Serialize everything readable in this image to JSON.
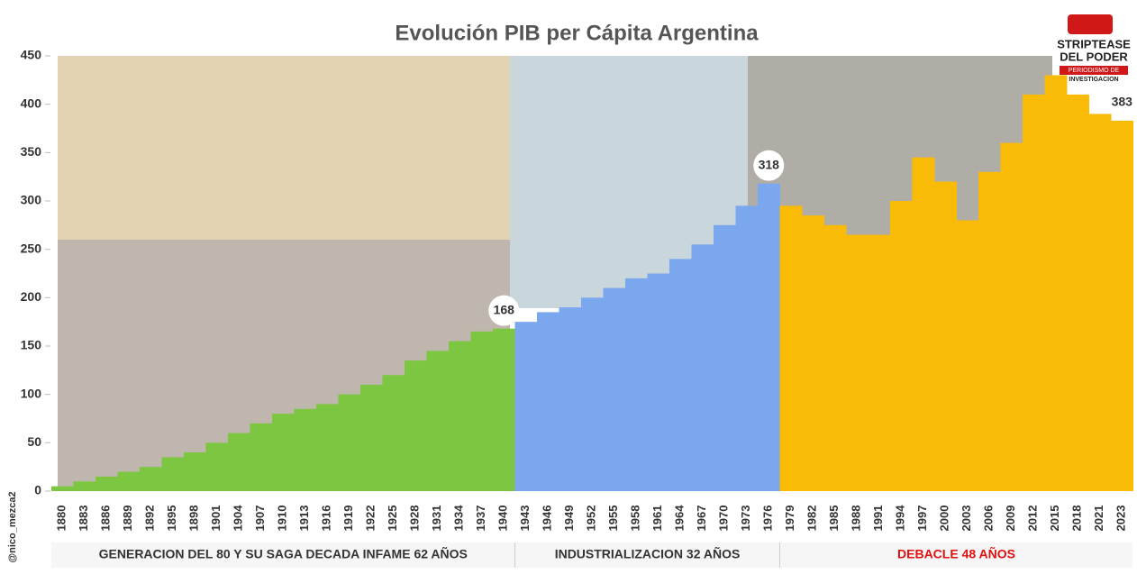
{
  "chart_data": {
    "type": "area",
    "title": "Evolución PIB per Cápita Argentina",
    "categories": [
      "1880",
      "1883",
      "1886",
      "1889",
      "1892",
      "1895",
      "1898",
      "1901",
      "1904",
      "1907",
      "1910",
      "1913",
      "1916",
      "1919",
      "1922",
      "1925",
      "1928",
      "1931",
      "1934",
      "1937",
      "1940",
      "1943",
      "1946",
      "1949",
      "1952",
      "1955",
      "1958",
      "1961",
      "1964",
      "1967",
      "1970",
      "1973",
      "1976",
      "1979",
      "1982",
      "1985",
      "1988",
      "1991",
      "1994",
      "1997",
      "2000",
      "2003",
      "2006",
      "2009",
      "2012",
      "2015",
      "2018",
      "2021",
      "2023"
    ],
    "series": [
      {
        "name": "GENERACION DEL 80 Y SU SAGA DECADA INFAME 62 AÑOS",
        "color": "#7dc642",
        "name_color": "#333333",
        "values": [
          5,
          10,
          15,
          20,
          25,
          35,
          40,
          50,
          60,
          70,
          80,
          85,
          90,
          100,
          110,
          120,
          135,
          145,
          155,
          165,
          168,
          null,
          null,
          null,
          null,
          null,
          null,
          null,
          null,
          null,
          null,
          null,
          null,
          null,
          null,
          null,
          null,
          null,
          null,
          null,
          null,
          null,
          null,
          null,
          null,
          null,
          null,
          null,
          null
        ],
        "value_labels": [
          null,
          null,
          null,
          null,
          null,
          null,
          null,
          null,
          null,
          null,
          null,
          null,
          null,
          null,
          null,
          null,
          null,
          null,
          null,
          null,
          "168",
          null,
          null,
          null,
          null,
          null,
          null,
          null,
          null,
          null,
          null,
          null,
          null,
          null,
          null,
          null,
          null,
          null,
          null,
          null,
          null,
          null,
          null,
          null,
          null,
          null,
          null,
          null,
          null
        ]
      },
      {
        "name": "INDUSTRIALIZACION  32 AÑOS",
        "color": "#7ba7ee",
        "name_color": "#333333",
        "values": [
          null,
          null,
          null,
          null,
          null,
          null,
          null,
          null,
          null,
          null,
          null,
          null,
          null,
          null,
          null,
          null,
          null,
          null,
          null,
          null,
          null,
          175,
          185,
          190,
          200,
          210,
          220,
          225,
          240,
          255,
          275,
          295,
          318,
          null,
          null,
          null,
          null,
          null,
          null,
          null,
          null,
          null,
          null,
          null,
          null,
          null,
          null,
          null,
          null
        ],
        "value_labels": [
          null,
          null,
          null,
          null,
          null,
          null,
          null,
          null,
          null,
          null,
          null,
          null,
          null,
          null,
          null,
          null,
          null,
          null,
          null,
          null,
          null,
          null,
          null,
          null,
          null,
          null,
          null,
          null,
          null,
          null,
          null,
          null,
          "318",
          null,
          null,
          null,
          null,
          null,
          null,
          null,
          null,
          null,
          null,
          null,
          null,
          null,
          null,
          null,
          null
        ]
      },
      {
        "name": "DEBACLE  48 AÑOS",
        "color": "#f9bb06",
        "name_color": "#e01010",
        "values": [
          null,
          null,
          null,
          null,
          null,
          null,
          null,
          null,
          null,
          null,
          null,
          null,
          null,
          null,
          null,
          null,
          null,
          null,
          null,
          null,
          null,
          null,
          null,
          null,
          null,
          null,
          null,
          null,
          null,
          null,
          null,
          null,
          null,
          295,
          285,
          275,
          265,
          265,
          300,
          345,
          320,
          280,
          330,
          360,
          410,
          430,
          410,
          390,
          383
        ],
        "value_labels": [
          null,
          null,
          null,
          null,
          null,
          null,
          null,
          null,
          null,
          null,
          null,
          null,
          null,
          null,
          null,
          null,
          null,
          null,
          null,
          null,
          null,
          null,
          null,
          null,
          null,
          null,
          null,
          null,
          null,
          null,
          null,
          null,
          null,
          null,
          null,
          null,
          null,
          null,
          null,
          null,
          null,
          null,
          null,
          null,
          null,
          null,
          null,
          null,
          "383"
        ]
      }
    ],
    "ylim": [
      0,
      450
    ],
    "yticks": [
      0,
      50,
      100,
      150,
      200,
      250,
      300,
      350,
      400,
      450
    ],
    "credit": "@nico_mezca2",
    "logo": {
      "line1": "STRIPTEASE",
      "line2": "DEL PODER",
      "line3": "PERIODISMO DE",
      "line4": "INVESTIGACION"
    }
  }
}
